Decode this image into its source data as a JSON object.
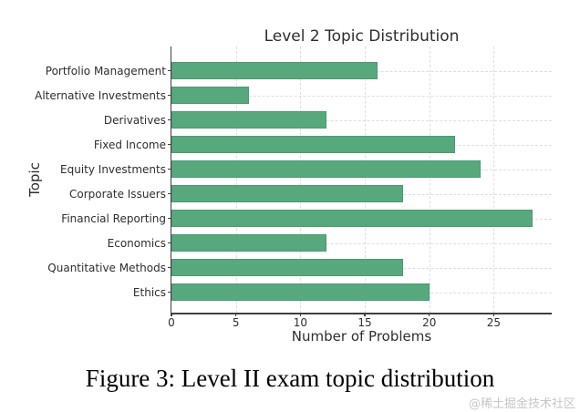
{
  "chart_data": {
    "type": "bar",
    "orientation": "horizontal",
    "title": "Level 2 Topic Distribution",
    "xlabel": "Number of Problems",
    "ylabel": "Topic",
    "categories": [
      "Portfolio Management",
      "Alternative Investments",
      "Derivatives",
      "Fixed Income",
      "Equity Investments",
      "Corporate Issuers",
      "Financial Reporting",
      "Economics",
      "Quantitative Methods",
      "Ethics"
    ],
    "values": [
      16,
      6,
      12,
      22,
      24,
      18,
      28,
      12,
      18,
      20
    ],
    "xlim": [
      0,
      29.5
    ],
    "xticks": [
      0,
      5,
      10,
      15,
      20,
      25
    ],
    "grid": {
      "show": true,
      "style": "dashed",
      "color": "#dedede",
      "which": "both"
    },
    "legend": null,
    "colors": {
      "bar_fill": "#57a87c",
      "bar_edge": "#4c9a71",
      "spine": "#3f3f3f",
      "text": "#2e2e2e"
    }
  },
  "caption": {
    "text": "Figure 3: Level II exam topic distribution"
  },
  "watermark": {
    "text": "@稀土掘金技术社区"
  }
}
